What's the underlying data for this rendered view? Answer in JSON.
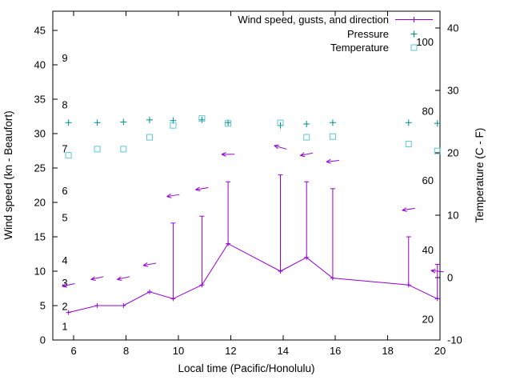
{
  "legend": {
    "items": [
      {
        "label": "Wind speed, gusts, and direction",
        "marker": "line-plus-icon",
        "color": "#9400d3"
      },
      {
        "label": "Pressure",
        "marker": "plus-icon",
        "color": "#008c8c"
      },
      {
        "label": "Temperature",
        "marker": "open-square-icon",
        "color": "#5cc6d6"
      }
    ]
  },
  "axes": {
    "x": {
      "label": "Local time (Pacific/Honolulu)",
      "range": [
        5.2,
        20
      ],
      "ticks": [
        6,
        8,
        10,
        12,
        14,
        16,
        18,
        20
      ]
    },
    "y_left": {
      "label": "Wind speed (kn - Beaufort)",
      "range": [
        0,
        47.8
      ],
      "ticks": [
        0,
        5,
        10,
        15,
        20,
        25,
        30,
        35,
        40,
        45
      ],
      "beaufort": [
        {
          "label": "1",
          "kn": 2.0
        },
        {
          "label": "2",
          "kn": 4.9
        },
        {
          "label": "3",
          "kn": 8.3
        },
        {
          "label": "4",
          "kn": 11.6
        },
        {
          "label": "5",
          "kn": 17.8
        },
        {
          "label": "6",
          "kn": 21.7
        },
        {
          "label": "7",
          "kn": 27.8
        },
        {
          "label": "8",
          "kn": 34.2
        },
        {
          "label": "9",
          "kn": 41.0
        }
      ]
    },
    "y_right": {
      "label": "Temperature (C - F)",
      "range": [
        -10,
        42.7
      ],
      "ticks": [
        -10,
        0,
        10,
        20,
        30,
        40
      ],
      "fahrenheit": [
        20,
        40,
        60,
        80,
        100
      ]
    }
  },
  "chart_data": {
    "type": "line",
    "xlabel": "Local time (Pacific/Honolulu)",
    "ylabel_left": "Wind speed (kn - Beaufort)",
    "ylabel_right": "Temperature (C - F)",
    "x_hours": [
      5.8,
      6.9,
      7.9,
      8.9,
      9.8,
      10.9,
      11.9,
      13.9,
      14.9,
      15.9,
      18.8,
      19.9
    ],
    "series": [
      {
        "name": "wind_speed_kn",
        "color": "#9400d3",
        "values": [
          4,
          5,
          5,
          7,
          6,
          8,
          14,
          10,
          12,
          9,
          8,
          6
        ]
      },
      {
        "name": "wind_gust_kn",
        "color": "#9400d3",
        "values": [
          null,
          null,
          null,
          null,
          17,
          18,
          23,
          24,
          23,
          22,
          15,
          11
        ]
      },
      {
        "name": "wind_dir_marker_height_kn",
        "color": "#9400d3",
        "values": [
          8,
          9,
          9,
          11,
          21,
          22,
          27,
          28,
          27,
          26,
          19,
          10
        ]
      },
      {
        "name": "wind_dir_arrow_angle_deg_screen",
        "color": "#9400d3",
        "values": [
          168,
          167,
          167,
          170,
          171,
          170,
          179,
          196,
          169,
          173,
          171,
          186
        ]
      },
      {
        "name": "pressure_plotted_on_left_axis_units",
        "color": "#008c8c",
        "values": [
          31.6,
          31.6,
          31.7,
          32.0,
          31.9,
          32.0,
          31.6,
          31.2,
          31.4,
          31.6,
          31.6,
          31.5
        ]
      },
      {
        "name": "temperature_c",
        "color": "#5cc6d6",
        "values": [
          19.6,
          20.6,
          20.6,
          22.5,
          24.4,
          25.5,
          24.7,
          24.8,
          22.5,
          22.6,
          21.4,
          20.3
        ]
      }
    ],
    "grid": false,
    "legend_position": "top-right-inside"
  },
  "colors": {
    "axis": "#000000",
    "background": "#ffffff"
  }
}
